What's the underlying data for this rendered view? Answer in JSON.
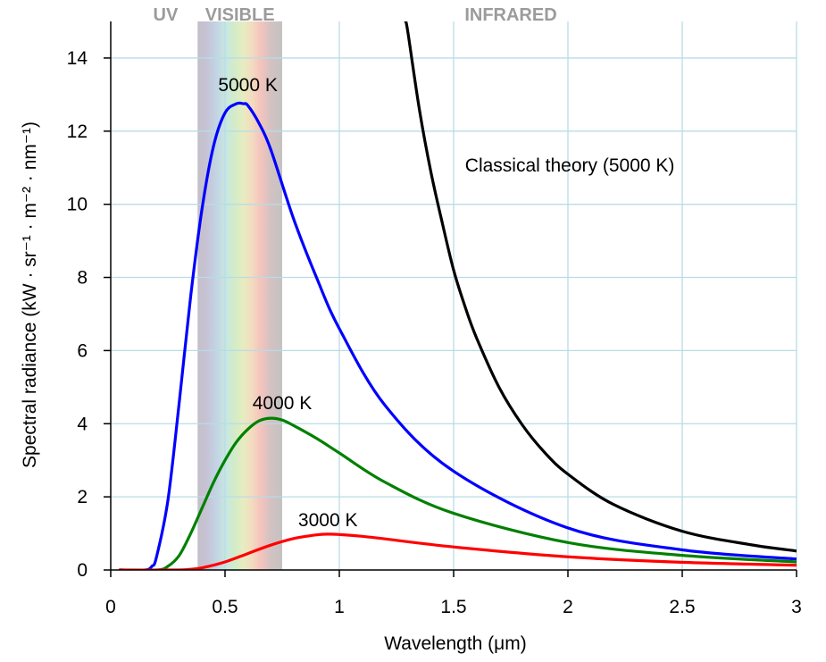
{
  "chart_data": {
    "type": "line",
    "xlabel": "Wavelength (μm)",
    "ylabel": "Spectral radiance (kW · sr⁻¹ · m⁻² · nm⁻¹)",
    "xlim": [
      0,
      3
    ],
    "ylim": [
      0,
      15
    ],
    "xticks": [
      0,
      0.5,
      1,
      1.5,
      2,
      2.5,
      3
    ],
    "xtick_labels": [
      "0",
      "0.5",
      "1",
      "1.5",
      "2",
      "2.5",
      "3"
    ],
    "yticks": [
      0,
      2,
      4,
      6,
      8,
      10,
      12,
      14
    ],
    "ytick_labels": [
      "0",
      "2",
      "4",
      "6",
      "8",
      "10",
      "12",
      "14"
    ],
    "grid": true,
    "regions": [
      {
        "label": "UV",
        "x_center": 0.24
      },
      {
        "label": "VISIBLE",
        "x_range": [
          0.38,
          0.75
        ],
        "color": "#c8c4c4"
      },
      {
        "label": "INFRARED",
        "x_center": 1.75
      }
    ],
    "series": [
      {
        "label": "5000 K",
        "color": "#0000ff",
        "x": [
          0.04,
          0.15,
          0.18,
          0.2,
          0.25,
          0.3,
          0.35,
          0.4,
          0.45,
          0.5,
          0.55,
          0.58,
          0.6,
          0.65,
          0.7,
          0.8,
          0.9,
          1.0,
          1.2,
          1.5,
          2.0,
          2.5,
          3.0
        ],
        "y": [
          0,
          0,
          0.1,
          0.35,
          1.9,
          4.6,
          7.5,
          9.9,
          11.6,
          12.5,
          12.75,
          12.75,
          12.7,
          12.2,
          11.5,
          9.6,
          8.0,
          6.6,
          4.5,
          2.7,
          1.15,
          0.55,
          0.3
        ]
      },
      {
        "label": "4000 K",
        "color": "#008000",
        "x": [
          0.04,
          0.2,
          0.25,
          0.3,
          0.35,
          0.4,
          0.45,
          0.5,
          0.55,
          0.6,
          0.65,
          0.7,
          0.75,
          0.8,
          0.9,
          1.0,
          1.2,
          1.5,
          2.0,
          2.5,
          3.0
        ],
        "y": [
          0,
          0,
          0.1,
          0.4,
          1.0,
          1.7,
          2.4,
          3.0,
          3.5,
          3.85,
          4.08,
          4.15,
          4.1,
          3.95,
          3.6,
          3.2,
          2.4,
          1.55,
          0.75,
          0.4,
          0.22
        ]
      },
      {
        "label": "3000 K",
        "color": "#ff0000",
        "x": [
          0.04,
          0.28,
          0.35,
          0.4,
          0.5,
          0.6,
          0.7,
          0.8,
          0.9,
          0.95,
          1.0,
          1.1,
          1.2,
          1.5,
          2.0,
          2.5,
          3.0
        ],
        "y": [
          0,
          0,
          0.02,
          0.06,
          0.22,
          0.45,
          0.68,
          0.86,
          0.96,
          0.98,
          0.97,
          0.92,
          0.85,
          0.63,
          0.36,
          0.21,
          0.13
        ]
      },
      {
        "label": "Classical theory (5000 K)",
        "color": "#000000",
        "x": [
          1.29,
          1.3,
          1.35,
          1.4,
          1.45,
          1.5,
          1.55,
          1.6,
          1.7,
          1.8,
          1.9,
          2.0,
          2.2,
          2.5,
          2.8,
          3.0
        ],
        "y": [
          15,
          14.7,
          12.6,
          10.9,
          9.5,
          8.2,
          7.2,
          6.35,
          4.98,
          3.97,
          3.2,
          2.62,
          1.79,
          1.06,
          0.69,
          0.52
        ]
      }
    ],
    "annotations": [
      {
        "text": "5000 K",
        "x": 0.6,
        "y": 13.1
      },
      {
        "text": "4000 K",
        "x": 0.75,
        "y": 4.4
      },
      {
        "text": "3000 K",
        "x": 0.95,
        "y": 1.2
      },
      {
        "text": "Classical theory (5000 K)",
        "x": 1.55,
        "y": 10.9
      }
    ]
  }
}
